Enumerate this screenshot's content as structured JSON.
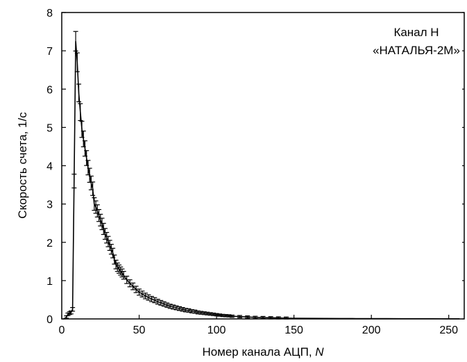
{
  "chart_data": {
    "type": "line",
    "title": "",
    "xlabel": "Номер канала АЦП, N",
    "xlabel_text": "Номер канала АЦП, ",
    "xlabel_var": "N",
    "ylabel": "Скорость счета, 1/с",
    "xlim": [
      0,
      260
    ],
    "ylim": [
      0,
      8
    ],
    "x_ticks": [
      0,
      50,
      100,
      150,
      200,
      250
    ],
    "y_ticks": [
      0,
      1,
      2,
      3,
      4,
      5,
      6,
      7,
      8
    ],
    "grid": false,
    "annotations": [
      "Канал H",
      "«НАТАЛЬЯ-2М»"
    ],
    "series": [
      {
        "error_bars": true,
        "color": "#000000",
        "points": [
          [
            1,
            0.0
          ],
          [
            2,
            0.01
          ],
          [
            3,
            0.05
          ],
          [
            4,
            0.12
          ],
          [
            5,
            0.15
          ],
          [
            6,
            0.17
          ],
          [
            7,
            0.25
          ],
          [
            8,
            3.6
          ],
          [
            9,
            7.25
          ],
          [
            10,
            6.7
          ],
          [
            11,
            5.9
          ],
          [
            12,
            5.4
          ],
          [
            13,
            4.95
          ],
          [
            14,
            4.7
          ],
          [
            15,
            4.45
          ],
          [
            16,
            4.2
          ],
          [
            17,
            3.95
          ],
          [
            18,
            3.75
          ],
          [
            19,
            3.55
          ],
          [
            20,
            3.4
          ],
          [
            21,
            3.0
          ],
          [
            22,
            2.92
          ],
          [
            23,
            2.82
          ],
          [
            24,
            2.7
          ],
          [
            25,
            2.58
          ],
          [
            26,
            2.48
          ],
          [
            27,
            2.35
          ],
          [
            28,
            2.22
          ],
          [
            29,
            2.12
          ],
          [
            30,
            2.02
          ],
          [
            31,
            1.92
          ],
          [
            32,
            1.82
          ],
          [
            33,
            1.72
          ],
          [
            34,
            1.55
          ],
          [
            35,
            1.42
          ],
          [
            36,
            1.35
          ],
          [
            37,
            1.3
          ],
          [
            38,
            1.25
          ],
          [
            39,
            1.2
          ],
          [
            40,
            1.14
          ],
          [
            42,
            1.02
          ],
          [
            44,
            0.93
          ],
          [
            46,
            0.85
          ],
          [
            48,
            0.77
          ],
          [
            50,
            0.7
          ],
          [
            52,
            0.65
          ],
          [
            54,
            0.6
          ],
          [
            56,
            0.56
          ],
          [
            58,
            0.52
          ],
          [
            60,
            0.49
          ],
          [
            62,
            0.45
          ],
          [
            64,
            0.42
          ],
          [
            66,
            0.39
          ],
          [
            68,
            0.36
          ],
          [
            70,
            0.33
          ],
          [
            72,
            0.31
          ],
          [
            74,
            0.29
          ],
          [
            76,
            0.27
          ],
          [
            78,
            0.25
          ],
          [
            80,
            0.23
          ],
          [
            82,
            0.22
          ],
          [
            84,
            0.2
          ],
          [
            86,
            0.19
          ],
          [
            88,
            0.17
          ],
          [
            90,
            0.16
          ],
          [
            92,
            0.15
          ],
          [
            94,
            0.14
          ],
          [
            96,
            0.13
          ],
          [
            98,
            0.12
          ],
          [
            100,
            0.11
          ],
          [
            102,
            0.1
          ],
          [
            104,
            0.09
          ],
          [
            106,
            0.085
          ],
          [
            108,
            0.08
          ],
          [
            110,
            0.07
          ],
          [
            115,
            0.06
          ],
          [
            120,
            0.05
          ],
          [
            125,
            0.04
          ],
          [
            130,
            0.035
          ],
          [
            135,
            0.03
          ],
          [
            140,
            0.025
          ],
          [
            145,
            0.02
          ],
          [
            150,
            0.018
          ],
          [
            160,
            0.015
          ],
          [
            170,
            0.012
          ],
          [
            180,
            0.01
          ],
          [
            190,
            0.009
          ],
          [
            200,
            0.008
          ],
          [
            210,
            0.007
          ],
          [
            220,
            0.006
          ],
          [
            230,
            0.005
          ],
          [
            240,
            0.005
          ],
          [
            250,
            0.004
          ],
          [
            257,
            0.004
          ]
        ]
      }
    ]
  }
}
